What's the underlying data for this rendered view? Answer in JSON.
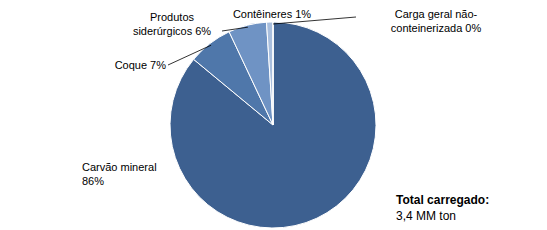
{
  "chart_data": {
    "type": "pie",
    "categories": [
      "Carvão mineral",
      "Coque",
      "Produtos siderúrgicos",
      "Contêineres",
      "Carga geral não-conteinerizada"
    ],
    "values": [
      86,
      7,
      6,
      1,
      0
    ],
    "value_labels": [
      "86%",
      "7%",
      "6%",
      "1%",
      "0%"
    ],
    "colors": [
      "#3d6090",
      "#4f77aa",
      "#6f93c4",
      "#a8bedd",
      "#cfdcee"
    ],
    "data_labels": true,
    "annotations": [
      "Total carregado:",
      "3,4 MM ton"
    ]
  }
}
